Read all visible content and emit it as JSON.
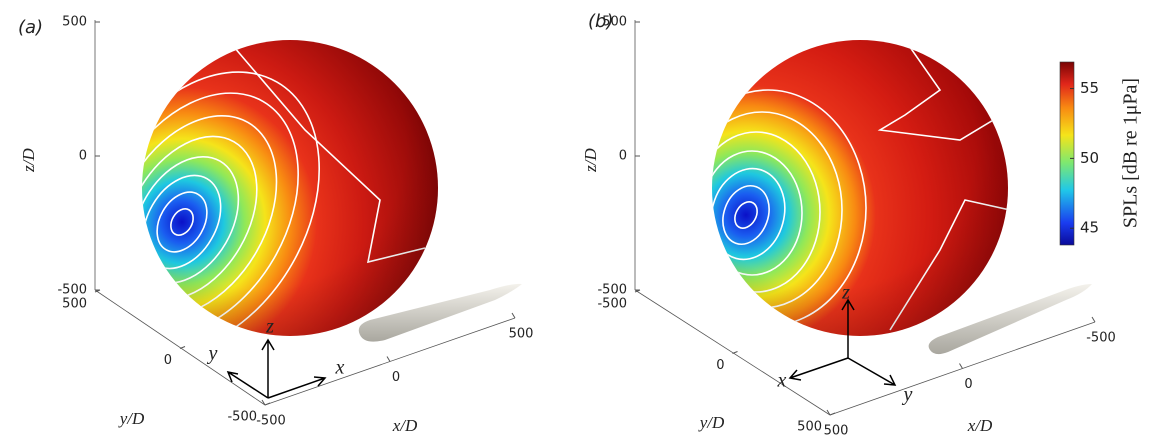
{
  "chart_data": [
    {
      "type": "surface3d",
      "panel_label": "(a)",
      "xlabel": "x/D",
      "ylabel": "y/D",
      "zlabel": "z/D",
      "xlim": [
        -500,
        500
      ],
      "xticks": [
        -500,
        0,
        500
      ],
      "ylim": [
        -500,
        500
      ],
      "yticks": [
        -500,
        0,
        500
      ],
      "zlim": [
        -500,
        500
      ],
      "zticks": [
        -500,
        0,
        500
      ],
      "triad_labels": [
        "x",
        "y",
        "z"
      ]
    },
    {
      "type": "surface3d",
      "panel_label": "(b)",
      "xlabel": "x/D",
      "ylabel": "y/D",
      "zlabel": "z/D",
      "xlim": [
        -500,
        500
      ],
      "xticks": [
        -500,
        0,
        500
      ],
      "ylim": [
        -500,
        500
      ],
      "yticks": [
        -500,
        0,
        500
      ],
      "zlim": [
        -500,
        500
      ],
      "zticks": [
        -500,
        0,
        500
      ],
      "triad_labels": [
        "x",
        "y",
        "z"
      ],
      "colorbar": {
        "label": "SPLs [dB re 1μPa]",
        "clim": [
          43.8,
          56.9
        ],
        "cticks": [
          45,
          50,
          55
        ]
      }
    }
  ]
}
